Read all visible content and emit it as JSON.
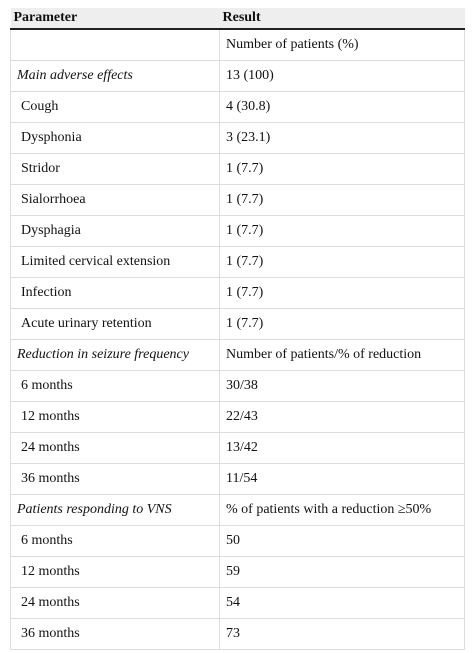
{
  "header": {
    "parameter": "Parameter",
    "result": "Result"
  },
  "subheader": "Number of patients (%)",
  "sections": [
    {
      "title": "Main adverse effects",
      "result": "13 (100)",
      "items": [
        [
          "Cough",
          "4 (30.8)"
        ],
        [
          "Dysphonia",
          "3 (23.1)"
        ],
        [
          "Stridor",
          "1 (7.7)"
        ],
        [
          "Sialorrhoea",
          "1 (7.7)"
        ],
        [
          "Dysphagia",
          "1 (7.7)"
        ],
        [
          "Limited cervical extension",
          "1 (7.7)"
        ],
        [
          "Infection",
          "1 (7.7)"
        ],
        [
          "Acute urinary retention",
          "1 (7.7)"
        ]
      ]
    },
    {
      "title": "Reduction in seizure frequency",
      "result": "Number of patients/% of reduction",
      "items": [
        [
          "6 months",
          "30/38"
        ],
        [
          "12 months",
          "22/43"
        ],
        [
          "24 months",
          "13/42"
        ],
        [
          "36 months",
          "11/54"
        ]
      ]
    },
    {
      "title": "Patients responding to VNS",
      "result": "% of patients with a reduction ≥50%",
      "items": [
        [
          "6 months",
          "50"
        ],
        [
          "12 months",
          "59"
        ],
        [
          "24 months",
          "54"
        ],
        [
          "36 months",
          "73"
        ]
      ]
    }
  ]
}
